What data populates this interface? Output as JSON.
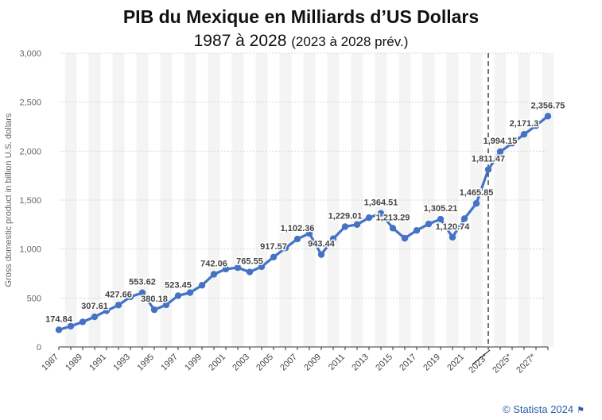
{
  "header": {
    "title": "PIB du Mexique en Milliards d’US Dollars",
    "subtitle_main": "1987 à 2028",
    "subtitle_note": "(2023 à 2028 prév.)"
  },
  "footer": {
    "copyright": "© Statista 2024",
    "flag_icon": "flag-icon"
  },
  "chart_data": {
    "type": "line",
    "title": "PIB du Mexique en Milliards d’US Dollars",
    "ylabel": "Gross domestic product in billion U.S. dollars",
    "ylim": [
      0,
      3000
    ],
    "yticks": [
      0,
      500,
      1000,
      1500,
      2000,
      2500,
      3000
    ],
    "ytick_labels": [
      "0",
      "500",
      "1,000",
      "1,500",
      "2,000",
      "2,500",
      "3,000"
    ],
    "xlim": [
      1987,
      2028
    ],
    "xtick_labels": [
      "1987",
      "1989",
      "1991",
      "1993",
      "1995",
      "1997",
      "1999",
      "2001",
      "2003",
      "2005",
      "2007",
      "2009",
      "2011",
      "2013",
      "2015",
      "2017",
      "2019",
      "2021",
      "2023*",
      "2025*",
      "2027*"
    ],
    "forecast_start": 2023,
    "line_color": "#4472c4",
    "grid": true,
    "series": [
      {
        "x": [
          1987,
          1988,
          1989,
          1990,
          1991,
          1992,
          1993,
          1994,
          1995,
          1996,
          1997,
          1998,
          1999,
          2000,
          2001,
          2002,
          2003,
          2004,
          2005,
          2006,
          2007,
          2008,
          2009,
          2010,
          2011,
          2012,
          2013,
          2014,
          2015,
          2016,
          2017,
          2018,
          2019,
          2020,
          2021,
          2022,
          2023,
          2024,
          2025,
          2026,
          2027,
          2028
        ],
        "values": [
          174.84,
          212,
          256,
          307.61,
          370,
          427.66,
          512,
          553.62,
          380.18,
          430,
          523.45,
          555,
          630,
          742.06,
          795,
          810,
          765.55,
          820,
          917.57,
          1011,
          1102.36,
          1160,
          943.44,
          1105,
          1229.01,
          1250,
          1320,
          1364.51,
          1213.29,
          1110,
          1190,
          1256,
          1305.21,
          1120.74,
          1310,
          1465.85,
          1811.47,
          1994.15,
          2080,
          2171.3,
          2260,
          2356.75
        ],
        "labels": [
          {
            "x": 1987,
            "text": "174.84"
          },
          {
            "x": 1990,
            "text": "307.61"
          },
          {
            "x": 1992,
            "text": "427.66"
          },
          {
            "x": 1994,
            "text": "553.62"
          },
          {
            "x": 1995,
            "text": "380.18"
          },
          {
            "x": 1997,
            "text": "523.45"
          },
          {
            "x": 2000,
            "text": "742.06"
          },
          {
            "x": 2003,
            "text": "765.55"
          },
          {
            "x": 2005,
            "text": "917.57"
          },
          {
            "x": 2007,
            "text": "1,102.36"
          },
          {
            "x": 2009,
            "text": "943.44"
          },
          {
            "x": 2011,
            "text": "1,229.01"
          },
          {
            "x": 2014,
            "text": "1,364.51"
          },
          {
            "x": 2015,
            "text": "1,213.29"
          },
          {
            "x": 2019,
            "text": "1,305.21"
          },
          {
            "x": 2020,
            "text": "1,120.74"
          },
          {
            "x": 2022,
            "text": "1,465.85"
          },
          {
            "x": 2023,
            "text": "1,811.47"
          },
          {
            "x": 2024,
            "text": "1,994.15"
          },
          {
            "x": 2026,
            "text": "2,171.3"
          },
          {
            "x": 2028,
            "text": "2,356.75"
          }
        ]
      }
    ]
  }
}
